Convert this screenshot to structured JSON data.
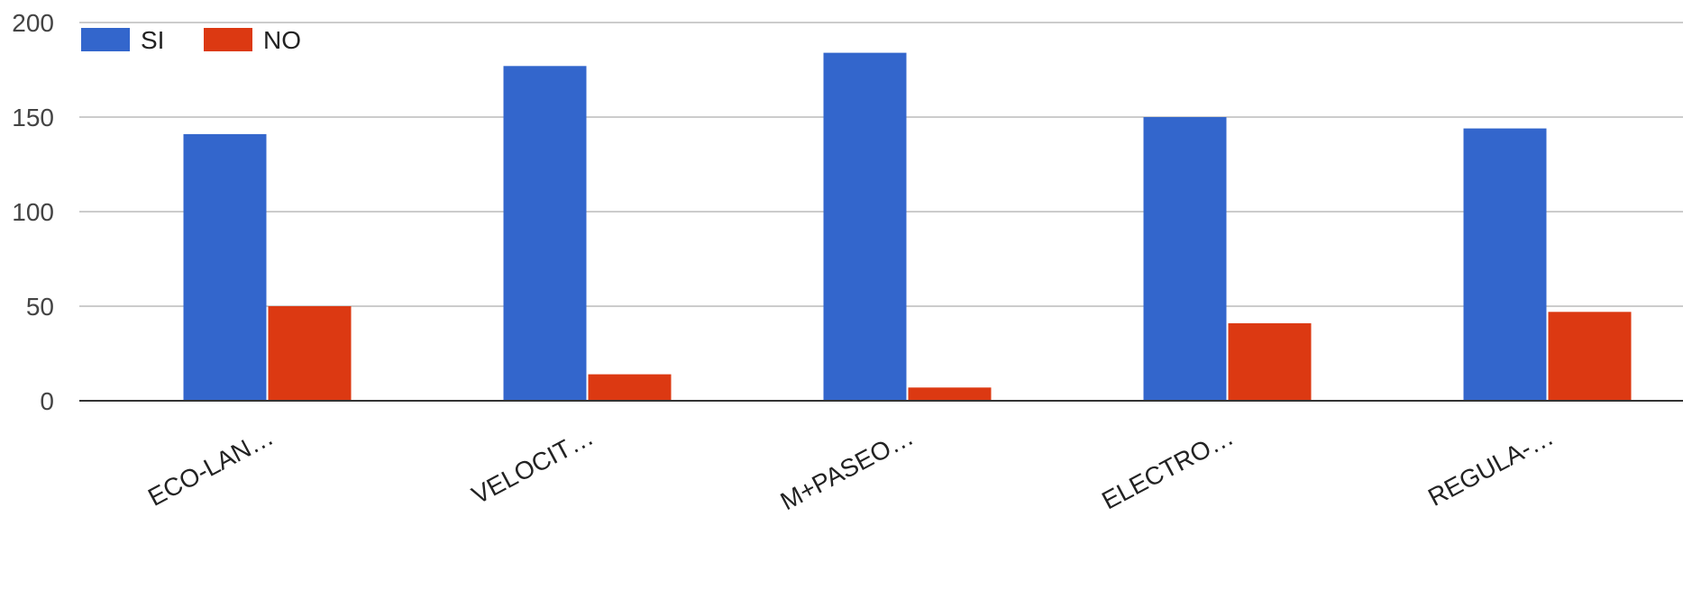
{
  "chart_data": {
    "type": "bar",
    "title": "",
    "xlabel": "",
    "ylabel": "",
    "ylim": [
      0,
      200
    ],
    "yticks": [
      0,
      50,
      100,
      150,
      200
    ],
    "grid": true,
    "legend_position": "top-left",
    "categories": [
      "ECO-LAN…",
      "VELOCIT…",
      "M+PASEO…",
      "ELECTRO…",
      "REGULA-…"
    ],
    "series": [
      {
        "name": "SI",
        "color": "#3366cc",
        "values": [
          141,
          177,
          184,
          150,
          144
        ]
      },
      {
        "name": "NO",
        "color": "#dc3912",
        "values": [
          50,
          14,
          7,
          41,
          47
        ]
      }
    ]
  }
}
